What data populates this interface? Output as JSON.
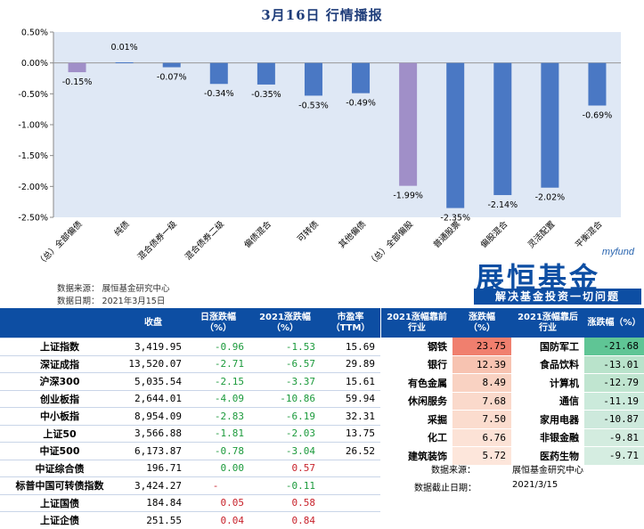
{
  "title": "3月16日  行情播报",
  "chart_data": {
    "type": "bar",
    "categories": [
      "（总）全部偏债",
      "纯债",
      "混合债券一级",
      "混合债券二级",
      "偏债混合",
      "可转债",
      "其他偏债",
      "（总）全部偏股",
      "普通股票",
      "偏股混合",
      "灵活配置",
      "平衡混合"
    ],
    "values": [
      -0.15,
      0.01,
      -0.07,
      -0.34,
      -0.35,
      -0.53,
      -0.49,
      -1.99,
      -2.35,
      -2.14,
      -2.02,
      -0.69
    ],
    "labels": [
      "-0.15%",
      "0.01%",
      "-0.07%",
      "-0.34%",
      "-0.35%",
      "-0.53%",
      "-0.49%",
      "-1.99%",
      "-2.35%",
      "-2.14%",
      "-2.02%",
      "-0.69%"
    ],
    "highlight": [
      0,
      7
    ],
    "yticks": [
      "0.50%",
      "0.00%",
      "-0.50%",
      "-1.00%",
      "-1.50%",
      "-2.00%",
      "-2.50%"
    ],
    "ylim": [
      -2.5,
      0.5
    ],
    "colors": {
      "bar": "#4a78c4",
      "highlight": "#a08fc8",
      "plot_bg": "#dfe8f5"
    }
  },
  "chart_notes": {
    "source": "数据来源：  展恒基金研究中心",
    "date": "数据日期：  2021年3月15日"
  },
  "logo": {
    "small": "myfund",
    "main": "展恒基金",
    "slogan": "解决基金投资一切问题"
  },
  "index_table": {
    "headers": [
      "",
      "收盘",
      "日涨跌幅\n（%）",
      "2021涨跌幅\n（%）",
      "市盈率\n（TTM）"
    ],
    "rows": [
      {
        "name": "上证指数",
        "close": "3,419.95",
        "day": "-0.96",
        "ytd": "-1.53",
        "pe": "15.69",
        "day_sign": "neg",
        "ytd_sign": "neg"
      },
      {
        "name": "深证成指",
        "close": "13,520.07",
        "day": "-2.71",
        "ytd": "-6.57",
        "pe": "29.89",
        "day_sign": "neg",
        "ytd_sign": "neg"
      },
      {
        "name": "沪深300",
        "close": "5,035.54",
        "day": "-2.15",
        "ytd": "-3.37",
        "pe": "15.61",
        "day_sign": "neg",
        "ytd_sign": "neg"
      },
      {
        "name": "创业板指",
        "close": "2,644.01",
        "day": "-4.09",
        "ytd": "-10.86",
        "pe": "59.94",
        "day_sign": "neg",
        "ytd_sign": "neg"
      },
      {
        "name": "中小板指",
        "close": "8,954.09",
        "day": "-2.83",
        "ytd": "-6.19",
        "pe": "32.31",
        "day_sign": "neg",
        "ytd_sign": "neg"
      },
      {
        "name": "上证50",
        "close": "3,566.88",
        "day": "-1.81",
        "ytd": "-2.03",
        "pe": "13.75",
        "day_sign": "neg",
        "ytd_sign": "neg"
      },
      {
        "name": "中证500",
        "close": "6,173.87",
        "day": "-0.78",
        "ytd": "-3.04",
        "pe": "26.52",
        "day_sign": "neg",
        "ytd_sign": "neg"
      },
      {
        "name": "中证综合债",
        "close": "196.71",
        "day": "0.00",
        "ytd": "0.57",
        "pe": "",
        "day_sign": "neg",
        "ytd_sign": "pos"
      },
      {
        "name": "标普中国可转债指数",
        "close": "3,424.27",
        "day": "-",
        "ytd": "-0.11",
        "pe": "",
        "day_sign": "pos",
        "ytd_sign": "neg"
      },
      {
        "name": "上证国债",
        "close": "184.84",
        "day": "0.05",
        "ytd": "0.58",
        "pe": "",
        "day_sign": "pos",
        "ytd_sign": "pos"
      },
      {
        "name": "上证企债",
        "close": "251.55",
        "day": "0.04",
        "ytd": "0.84",
        "pe": "",
        "day_sign": "pos",
        "ytd_sign": "pos"
      }
    ]
  },
  "industry_table": {
    "headers": [
      "2021涨幅靠前\n行业",
      "涨跌幅\n（%）",
      "2021涨幅靠后\n行业",
      "涨跌幅（%）"
    ],
    "rows": [
      {
        "top": "钢铁",
        "top_val": "23.75",
        "bottom": "国防军工",
        "bottom_val": "-21.68"
      },
      {
        "top": "银行",
        "top_val": "12.39",
        "bottom": "食品饮料",
        "bottom_val": "-13.01"
      },
      {
        "top": "有色金属",
        "top_val": "8.49",
        "bottom": "计算机",
        "bottom_val": "-12.79"
      },
      {
        "top": "休闲服务",
        "top_val": "7.68",
        "bottom": "通信",
        "bottom_val": "-11.19"
      },
      {
        "top": "采掘",
        "top_val": "7.50",
        "bottom": "家用电器",
        "bottom_val": "-10.87"
      },
      {
        "top": "化工",
        "top_val": "6.76",
        "bottom": "非银金融",
        "bottom_val": "-9.81"
      },
      {
        "top": "建筑装饰",
        "top_val": "5.72",
        "bottom": "医药生物",
        "bottom_val": "-9.71"
      }
    ],
    "top_colors": [
      "#f07f6e",
      "#f7c3b1",
      "#f9d2c2",
      "#fad9cb",
      "#fbdcce",
      "#fce2d6",
      "#fde6db"
    ],
    "bottom_colors": [
      "#5fc595",
      "#b9e3cb",
      "#c0e5d0",
      "#cbeadb",
      "#cde9dc",
      "#d3ecdf",
      "#d5ede1"
    ]
  },
  "footer_source": {
    "label1": "数据来源：",
    "value1": "展恒基金研究中心",
    "label2": "数据截止日期：",
    "value2": "2021/3/15"
  }
}
